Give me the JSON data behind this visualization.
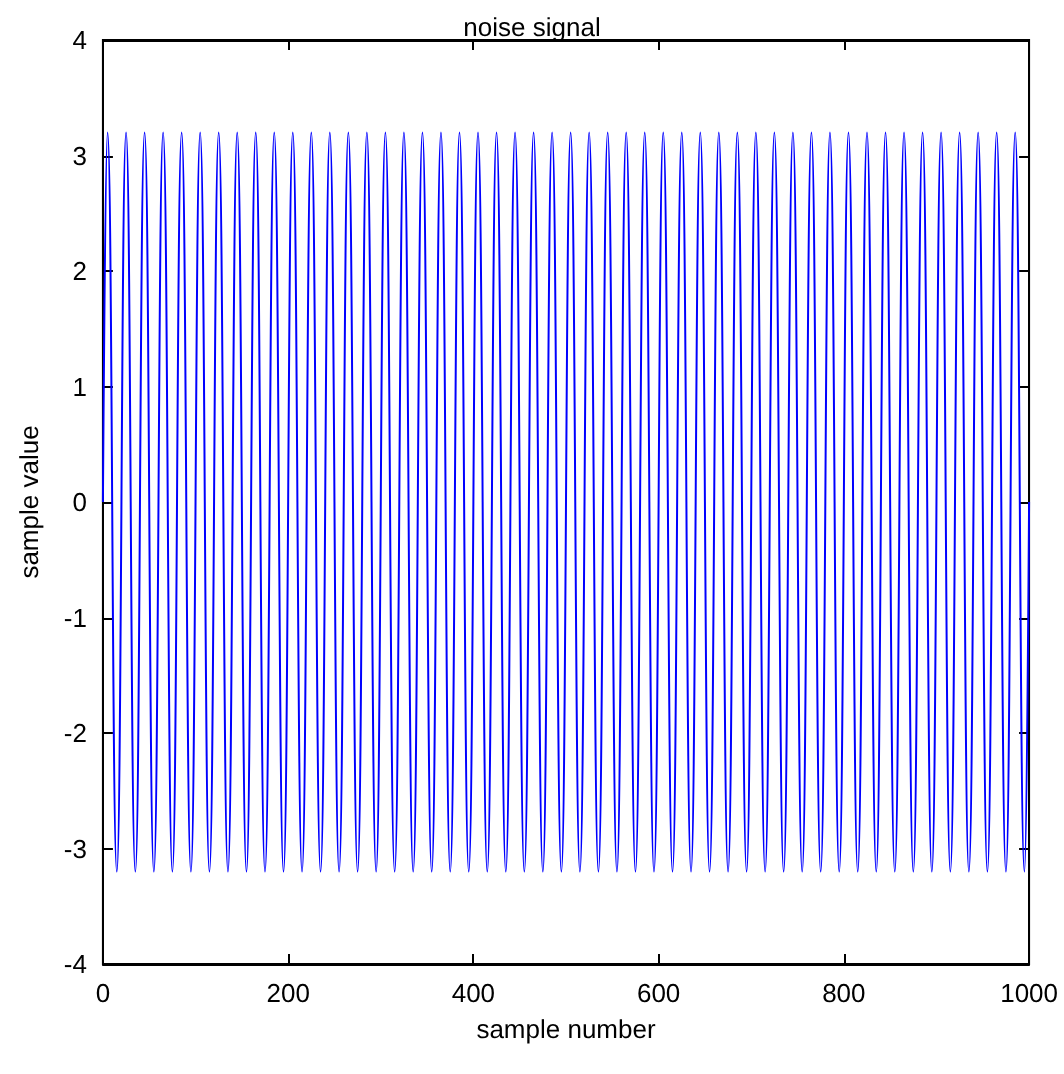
{
  "chart_data": {
    "type": "line",
    "title": "noise signal",
    "xlabel": "sample number",
    "ylabel": "sample value",
    "x": [
      0,
      5,
      15,
      25,
      35,
      45,
      55,
      65,
      75,
      85,
      95,
      105,
      115,
      125,
      135,
      145,
      155,
      165,
      175,
      185,
      195,
      205,
      215,
      225,
      235,
      245,
      255,
      265,
      275,
      285,
      295,
      305,
      315,
      325,
      335,
      345,
      355,
      365,
      375,
      385,
      395,
      405,
      415,
      425,
      435,
      445,
      455,
      465,
      475,
      485,
      495,
      505,
      515,
      525,
      535,
      545,
      555,
      565,
      575,
      585,
      595,
      605,
      615,
      625,
      635,
      645,
      655,
      665,
      675,
      685,
      695,
      705,
      715,
      725,
      735,
      745,
      755,
      765,
      775,
      785,
      795,
      805,
      815,
      825,
      835,
      845,
      855,
      865,
      875,
      885,
      895,
      905,
      915,
      925,
      935,
      945,
      955,
      965,
      975,
      985,
      995,
      1000
    ],
    "series": [
      {
        "color": "#0000ff",
        "values": [
          0,
          3.2,
          -3.2,
          3.2,
          -3.2,
          3.2,
          -3.2,
          3.2,
          -3.2,
          3.2,
          -3.2,
          3.2,
          -3.2,
          3.2,
          -3.2,
          3.2,
          -3.2,
          3.2,
          -3.2,
          3.2,
          -3.2,
          3.2,
          -3.2,
          3.2,
          -3.2,
          3.2,
          -3.2,
          3.2,
          -3.2,
          3.2,
          -3.2,
          3.2,
          -3.2,
          3.2,
          -3.2,
          3.2,
          -3.2,
          3.2,
          -3.2,
          3.2,
          -3.2,
          3.2,
          -3.2,
          3.2,
          -3.2,
          3.2,
          -3.2,
          3.2,
          -3.2,
          3.2,
          -3.2,
          3.2,
          -3.2,
          3.2,
          -3.2,
          3.2,
          -3.2,
          3.2,
          -3.2,
          3.2,
          -3.2,
          3.2,
          -3.2,
          3.2,
          -3.2,
          3.2,
          -3.2,
          3.2,
          -3.2,
          3.2,
          -3.2,
          3.2,
          -3.2,
          3.2,
          -3.2,
          3.2,
          -3.2,
          3.2,
          -3.2,
          3.2,
          -3.2,
          3.2,
          -3.2,
          3.2,
          -3.2,
          3.2,
          -3.2,
          3.2,
          -3.2,
          3.2,
          -3.2,
          3.2,
          -3.2,
          3.2,
          -3.2,
          3.2,
          -3.2,
          3.2,
          -3.2,
          3.2,
          -3.2,
          0
        ]
      }
    ],
    "xlim": [
      0,
      1000
    ],
    "xticks": [
      0,
      200,
      400,
      600,
      800,
      1000
    ],
    "ylim": [
      -4,
      4
    ],
    "yticks": [
      -4,
      -3,
      -2,
      -1,
      0,
      1,
      2,
      3,
      4
    ],
    "grid": false,
    "marker": "none",
    "line_style": "solid"
  }
}
